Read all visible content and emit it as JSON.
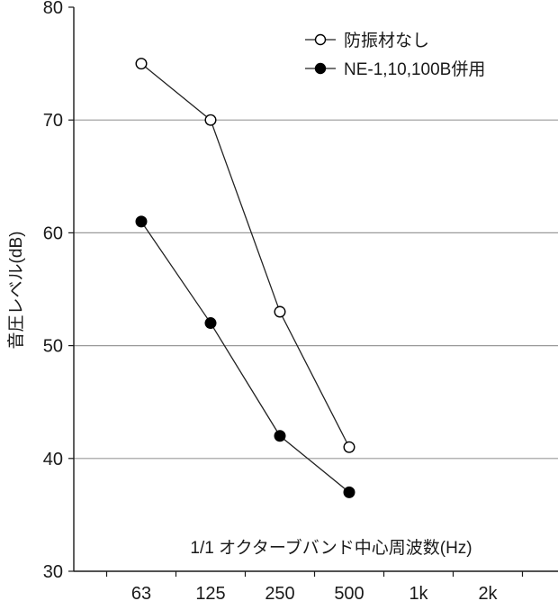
{
  "chart_data": {
    "type": "line",
    "categories": [
      "63",
      "125",
      "250",
      "500",
      "1k",
      "2k"
    ],
    "series": [
      {
        "name": "防振材なし",
        "values": [
          75,
          70,
          53,
          41,
          null,
          null
        ],
        "marker": "open-circle"
      },
      {
        "name": "NE-1,10,100B併用",
        "values": [
          61,
          52,
          42,
          37,
          null,
          null
        ],
        "marker": "filled-circle"
      }
    ],
    "xlabel": "1/1 オクターブバンド中心周波数(Hz)",
    "ylabel": "音圧レベル(dB)",
    "ylim": [
      30,
      80
    ],
    "yticks": [
      30,
      40,
      50,
      60,
      70,
      80
    ],
    "grid": true,
    "legend": "top-right",
    "colors": {
      "line": "#222222",
      "grid": "#9a9a9a",
      "axis": "#1a1a1a",
      "open_marker_fill": "#ffffff",
      "filled_marker_fill": "#000000"
    }
  }
}
